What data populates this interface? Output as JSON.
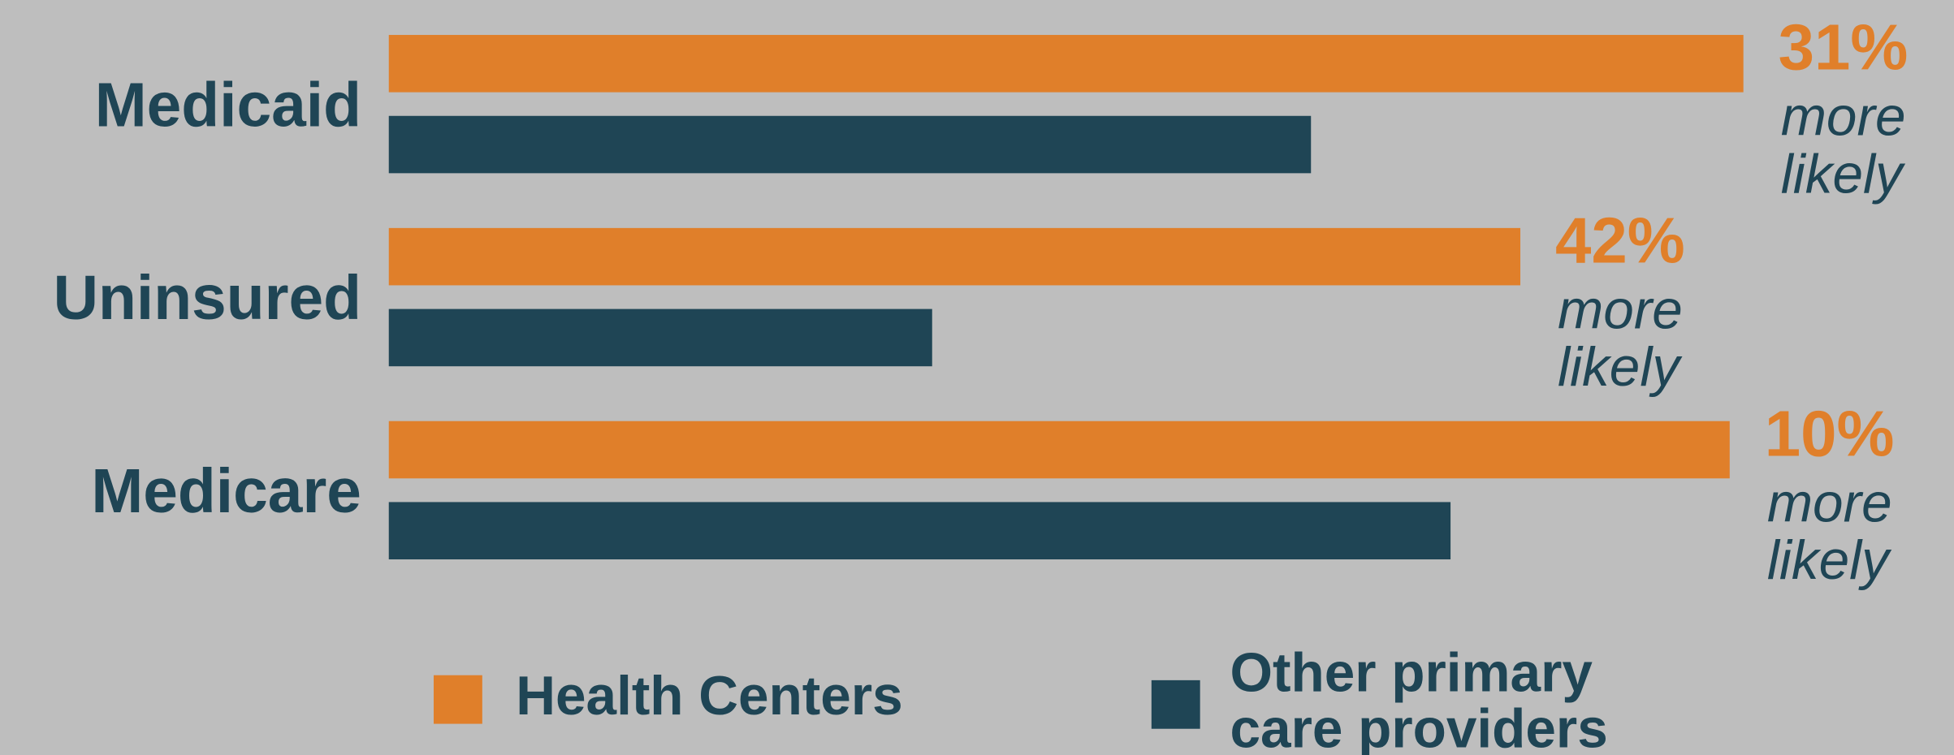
{
  "chart_data": {
    "type": "bar",
    "orientation": "horizontal",
    "categories": [
      "Medicaid",
      "Uninsured",
      "Medicare"
    ],
    "series": [
      {
        "name": "Health Centers",
        "color": "#e07f2a",
        "values": [
          1087,
          908,
          1076
        ]
      },
      {
        "name": "Other primary care providers",
        "color": "#1f4555",
        "values": [
          740,
          436,
          852
        ]
      }
    ],
    "xlim": [
      0,
      1087
    ],
    "annotations": [
      {
        "label": "31%",
        "text": [
          "more",
          "likely"
        ]
      },
      {
        "label": "42%",
        "text": [
          "more",
          "likely"
        ]
      },
      {
        "label": "10%",
        "text": [
          "more",
          "likely"
        ]
      }
    ]
  }
}
